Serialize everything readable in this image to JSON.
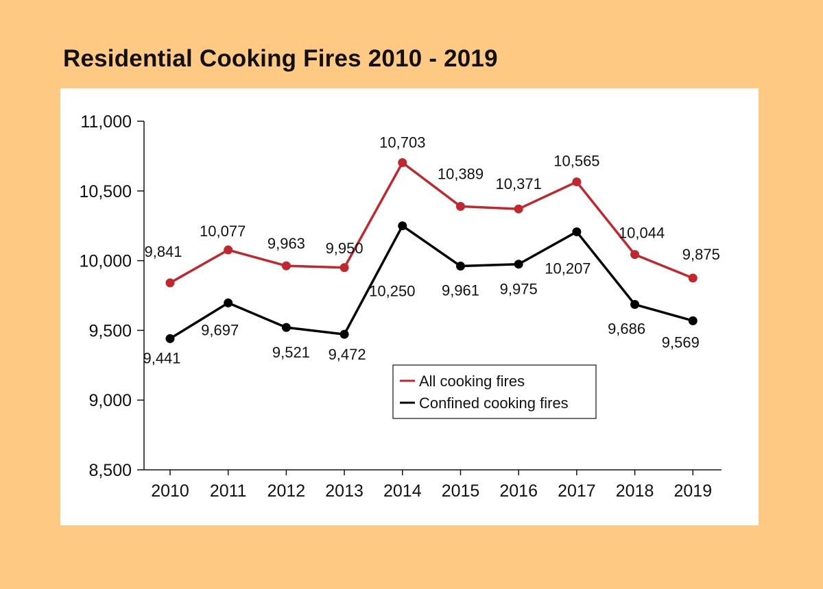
{
  "colors": {
    "background": "#FEC983",
    "panel": "#FFFFFF",
    "all": "#C1272D",
    "confined": "#000000"
  },
  "chart_data": {
    "type": "line",
    "title": "Residential Cooking Fires 2010 - 2019",
    "xlabel": "",
    "ylabel": "",
    "categories": [
      "2010",
      "2011",
      "2012",
      "2013",
      "2014",
      "2015",
      "2016",
      "2017",
      "2018",
      "2019"
    ],
    "ylim": [
      8500,
      11000
    ],
    "yticks": [
      8500,
      9000,
      9500,
      10000,
      10500,
      11000
    ],
    "ytick_labels": [
      "8,500",
      "9,000",
      "9,500",
      "10,000",
      "10,500",
      "11,000"
    ],
    "legend_position": "lower-right-of-center",
    "series": [
      {
        "name": "All cooking fires",
        "color": "#C1272D",
        "values": [
          9841,
          10077,
          9963,
          9950,
          10703,
          10389,
          10371,
          10565,
          10044,
          9875
        ],
        "labels": [
          "9,841",
          "10,077",
          "9,963",
          "9,950",
          "10,703",
          "10,389",
          "10,371",
          "10,565",
          "10,044",
          "9,875"
        ]
      },
      {
        "name": "Confined cooking fires",
        "color": "#000000",
        "values": [
          9441,
          9697,
          9521,
          9472,
          10250,
          9961,
          9975,
          10207,
          9686,
          9569
        ],
        "labels": [
          "9,441",
          "9,697",
          "9,521",
          "9,472",
          "10,250",
          "9,961",
          "9,975",
          "10,207",
          "9,686",
          "9,569"
        ]
      }
    ]
  }
}
